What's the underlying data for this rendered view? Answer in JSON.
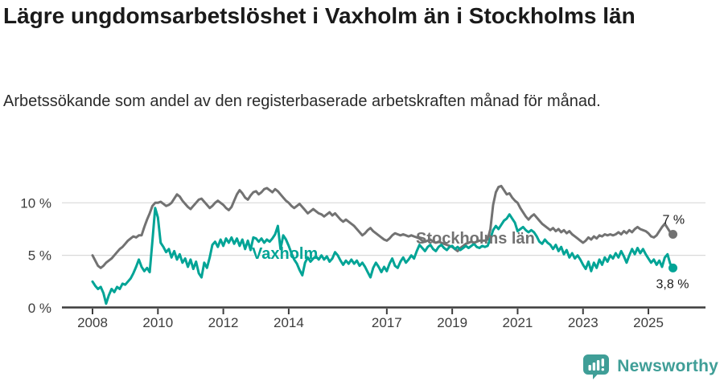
{
  "header": {
    "title": "Lägre ungdomsarbetslöshet i Vaxholm än i Stockholms län",
    "subtitle": "Arbetssökande som andel av den registerbaserade arbetskraften månad för månad."
  },
  "footer": {
    "brand": "Newsworthy",
    "logo_icon": "bar-chart-speech-bubble-icon",
    "brand_color": "#3f9e97"
  },
  "chart_data": {
    "type": "line",
    "title": "Lägre ungdomsarbetslöshet i Vaxholm än i Stockholms län",
    "x_start_year": 2008,
    "points_per_year": 12,
    "x_tick_years": [
      2008,
      2010,
      2012,
      2014,
      2017,
      2019,
      2021,
      2023,
      2025
    ],
    "x_tick_labels": [
      "2008",
      "2010",
      "2012",
      "2014",
      "2017",
      "2019",
      "2021",
      "2023",
      "2025"
    ],
    "y_ticks": [
      {
        "value": 0,
        "label": "0 %"
      },
      {
        "value": 5,
        "label": "5 %"
      },
      {
        "value": 10,
        "label": "10 %"
      }
    ],
    "grid_values": [
      5,
      10
    ],
    "ylim": [
      0,
      12
    ],
    "unit": "%",
    "axis_color": "#3d3d3d",
    "grid_color": "#d9d9d9",
    "series": [
      {
        "id": "stockholms-lan",
        "name": "Stockholms län",
        "color": "#727272",
        "end_label": "7 %",
        "end_value": 7.0,
        "values": [
          5.0,
          4.5,
          4.0,
          3.8,
          4.0,
          4.3,
          4.5,
          4.7,
          5.0,
          5.3,
          5.6,
          5.8,
          6.1,
          6.4,
          6.6,
          6.8,
          6.7,
          6.9,
          6.9,
          7.7,
          8.4,
          9.0,
          9.7,
          10.0,
          10.0,
          10.1,
          9.9,
          9.7,
          9.8,
          10.0,
          10.4,
          10.8,
          10.6,
          10.2,
          9.9,
          9.6,
          9.4,
          9.7,
          10.0,
          10.3,
          10.4,
          10.1,
          9.8,
          9.5,
          9.7,
          10.0,
          10.2,
          10.0,
          9.8,
          9.5,
          9.3,
          9.6,
          10.2,
          10.8,
          11.2,
          10.9,
          10.5,
          10.3,
          10.7,
          11.0,
          11.1,
          10.8,
          11.0,
          11.3,
          11.4,
          11.2,
          11.0,
          11.3,
          11.1,
          10.8,
          10.5,
          10.2,
          10.0,
          9.7,
          9.5,
          9.7,
          9.9,
          9.6,
          9.3,
          9.0,
          9.2,
          9.4,
          9.2,
          9.0,
          8.9,
          8.7,
          8.9,
          9.1,
          8.8,
          9.0,
          8.7,
          8.4,
          8.2,
          8.4,
          8.2,
          8.0,
          7.8,
          7.5,
          7.2,
          6.9,
          7.1,
          7.4,
          7.6,
          7.3,
          7.1,
          6.9,
          6.7,
          6.5,
          6.4,
          6.6,
          6.9,
          7.1,
          7.0,
          6.9,
          7.0,
          6.9,
          6.8,
          6.9,
          6.8,
          6.7,
          6.6,
          6.4,
          6.3,
          6.4,
          6.5,
          6.3,
          6.2,
          6.3,
          6.2,
          6.1,
          6.0,
          5.9,
          5.8,
          5.6,
          5.4,
          5.7,
          5.9,
          6.1,
          6.2,
          6.3,
          6.2,
          6.3,
          6.4,
          6.4,
          6.4,
          6.5,
          7.5,
          9.8,
          11.0,
          11.5,
          11.6,
          11.2,
          10.8,
          10.9,
          10.5,
          10.2,
          10.0,
          9.5,
          9.1,
          8.7,
          8.4,
          8.7,
          8.9,
          8.6,
          8.3,
          8.0,
          7.8,
          7.6,
          7.4,
          7.6,
          7.3,
          7.5,
          7.2,
          7.4,
          7.1,
          7.3,
          7.0,
          6.8,
          6.6,
          6.4,
          6.2,
          6.4,
          6.7,
          6.5,
          6.8,
          6.6,
          6.9,
          6.8,
          7.0,
          6.9,
          7.0,
          6.9,
          7.0,
          7.2,
          7.0,
          7.3,
          7.1,
          7.4,
          7.2,
          7.5,
          7.7,
          7.5,
          7.4,
          7.3,
          7.1,
          6.8,
          6.7,
          6.9,
          7.3,
          7.7,
          8.0,
          7.6,
          7.2,
          7.0
        ]
      },
      {
        "id": "vaxholm",
        "name": "Vaxholm",
        "color": "#00a496",
        "end_label": "3,8 %",
        "end_value": 3.8,
        "values": [
          2.5,
          2.1,
          1.8,
          2.0,
          1.4,
          0.4,
          1.2,
          1.8,
          1.5,
          2.0,
          1.8,
          2.3,
          2.2,
          2.5,
          2.8,
          3.3,
          3.9,
          4.6,
          3.9,
          3.5,
          3.8,
          3.4,
          6.4,
          9.5,
          8.6,
          6.2,
          5.8,
          5.3,
          5.6,
          4.8,
          5.4,
          4.6,
          5.1,
          4.3,
          4.7,
          3.9,
          4.6,
          3.7,
          4.4,
          3.3,
          2.9,
          4.3,
          3.8,
          4.8,
          6.0,
          6.3,
          5.8,
          6.5,
          5.9,
          6.6,
          6.2,
          6.7,
          6.1,
          6.6,
          5.9,
          6.5,
          5.6,
          6.4,
          5.5,
          6.7,
          6.6,
          6.3,
          6.6,
          6.2,
          6.5,
          6.3,
          6.6,
          7.0,
          7.8,
          5.6,
          6.9,
          6.5,
          5.9,
          5.2,
          4.6,
          4.2,
          3.6,
          3.1,
          4.3,
          4.8,
          4.4,
          4.7,
          4.9,
          4.6,
          5.0,
          4.6,
          4.9,
          4.4,
          4.7,
          5.3,
          5.0,
          4.5,
          4.1,
          4.5,
          4.2,
          4.6,
          4.2,
          4.5,
          4.0,
          4.3,
          3.9,
          3.4,
          2.9,
          3.8,
          4.3,
          3.9,
          3.4,
          3.9,
          3.5,
          4.2,
          4.7,
          4.0,
          3.8,
          4.4,
          4.8,
          4.3,
          4.6,
          5.0,
          4.7,
          5.4,
          6.0,
          5.7,
          5.4,
          5.8,
          6.0,
          5.6,
          5.4,
          5.8,
          6.0,
          5.7,
          5.5,
          5.8,
          5.9,
          5.6,
          5.8,
          5.5,
          5.7,
          5.9,
          5.7,
          5.9,
          6.1,
          5.8,
          5.7,
          5.9,
          5.8,
          5.9,
          6.6,
          7.4,
          7.8,
          7.5,
          7.9,
          8.3,
          8.5,
          8.9,
          8.5,
          8.1,
          7.3,
          7.5,
          7.7,
          7.4,
          7.2,
          7.4,
          7.2,
          6.8,
          6.3,
          6.1,
          6.5,
          6.2,
          6.0,
          5.6,
          6.0,
          5.4,
          5.8,
          5.1,
          5.5,
          4.8,
          5.2,
          4.7,
          5.0,
          4.6,
          4.1,
          3.7,
          4.4,
          3.5,
          4.3,
          3.8,
          4.6,
          4.1,
          4.8,
          4.4,
          5.0,
          4.7,
          5.2,
          4.8,
          5.4,
          4.9,
          4.3,
          5.0,
          5.6,
          5.1,
          5.7,
          5.2,
          5.6,
          5.1,
          4.7,
          4.3,
          4.6,
          4.1,
          4.5,
          3.9,
          4.8,
          5.1,
          4.2,
          3.8
        ]
      }
    ],
    "legend_position": "inline-labels"
  }
}
